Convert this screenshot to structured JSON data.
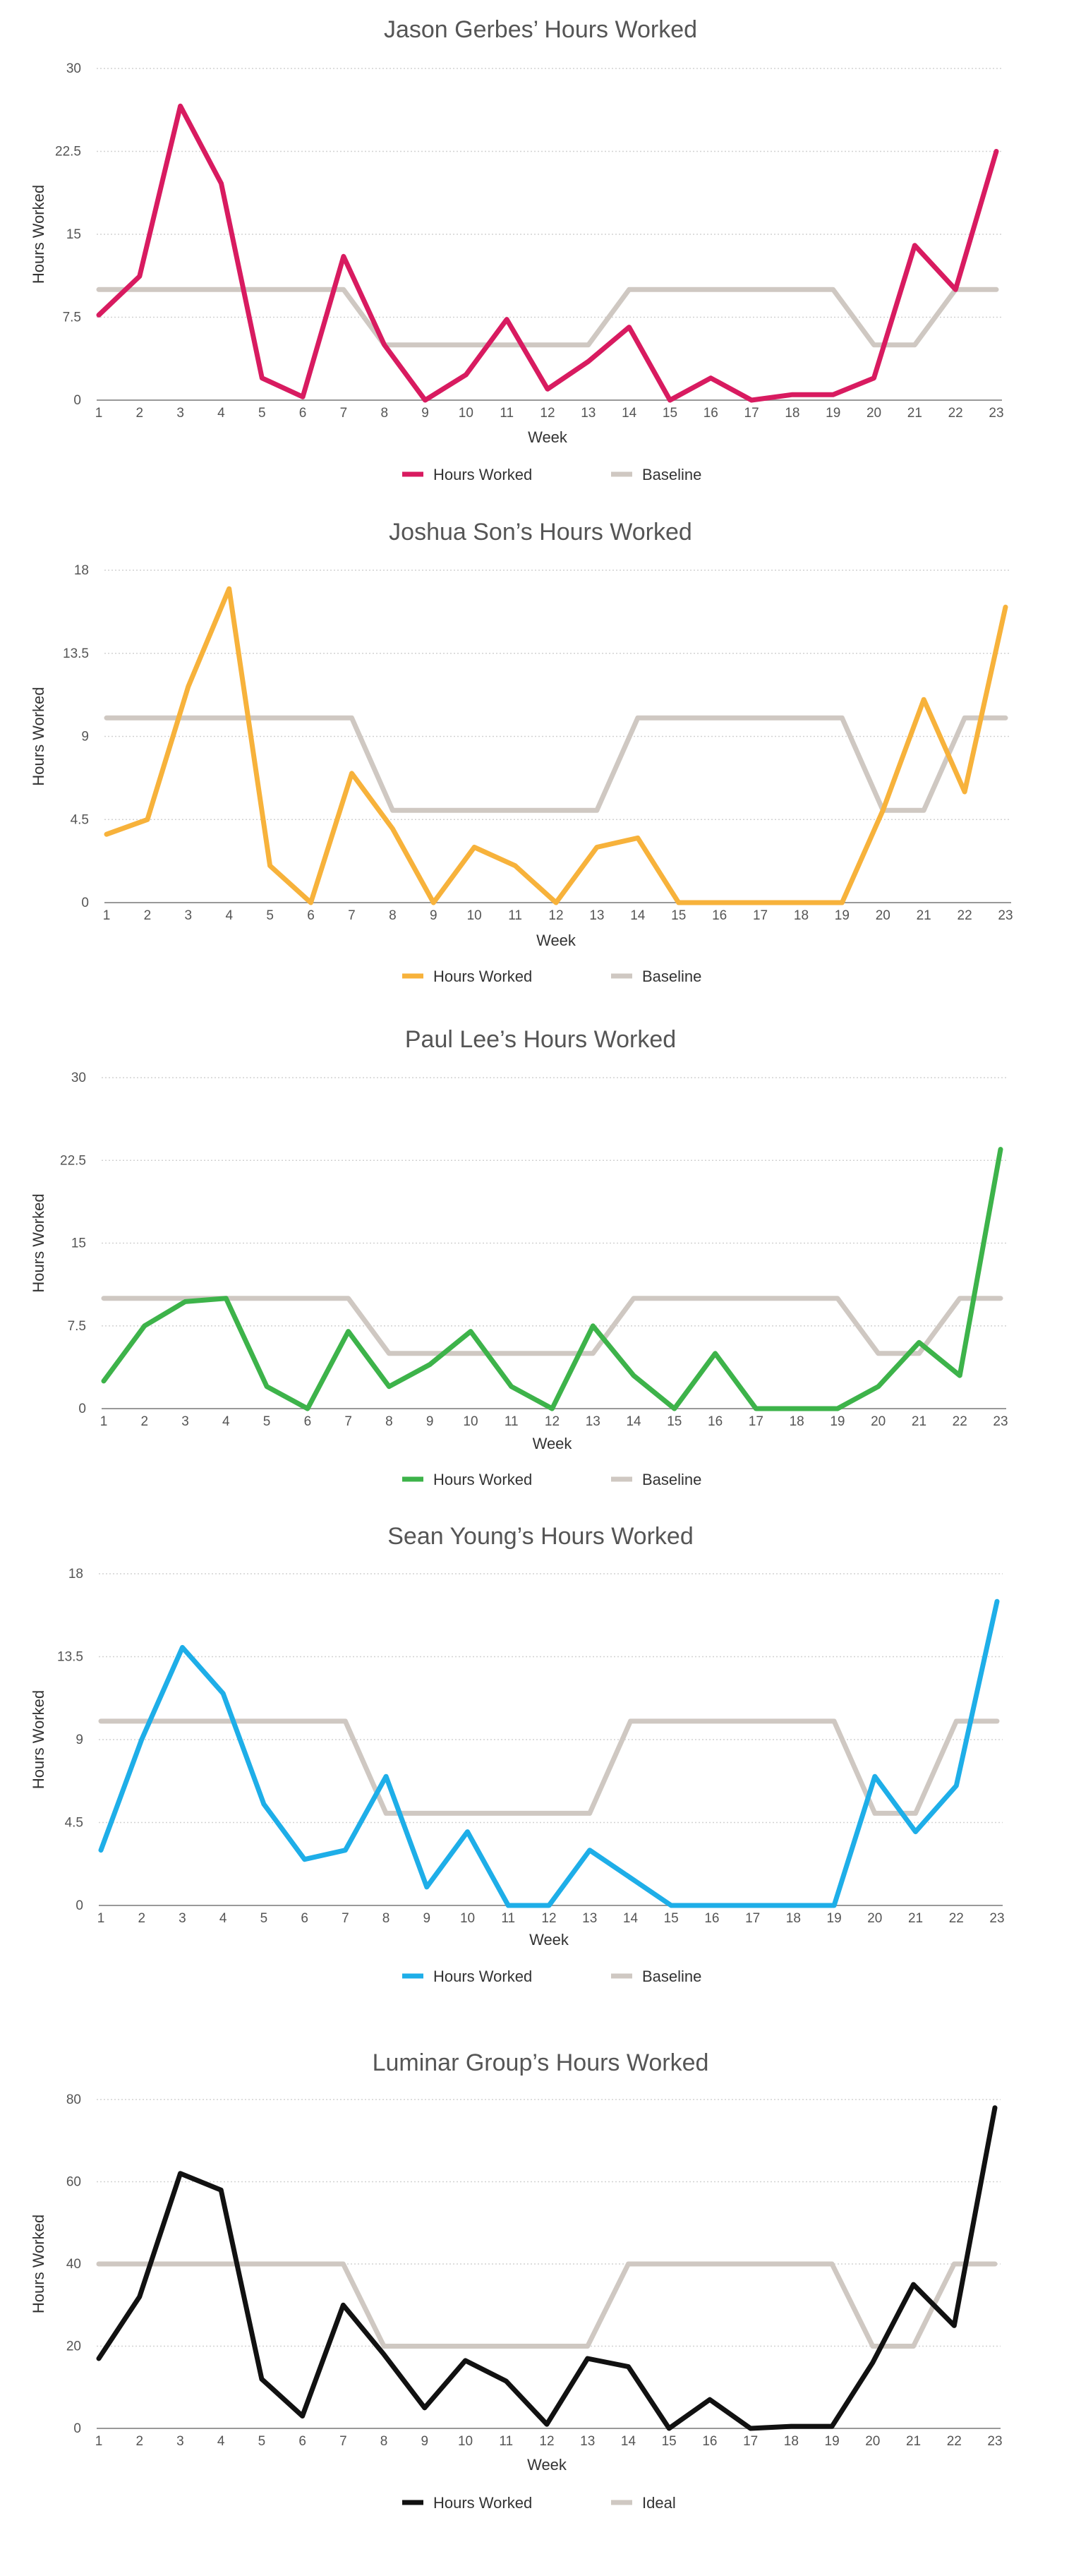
{
  "chart_data": [
    {
      "type": "line",
      "title": "Jason Gerbes’ Hours Worked",
      "xlabel": "Week",
      "ylabel": "Hours Worked",
      "x": [
        1,
        2,
        3,
        4,
        5,
        6,
        7,
        8,
        9,
        10,
        11,
        12,
        13,
        14,
        15,
        16,
        17,
        18,
        19,
        20,
        21,
        22,
        23
      ],
      "yticks": [
        "0",
        "7.5",
        "15",
        "22.5",
        "30"
      ],
      "ylim": [
        0,
        30
      ],
      "grid": true,
      "legend": "bottom",
      "series": [
        {
          "name": "Hours Worked",
          "color": "#d81b60",
          "values": [
            7.7,
            11.2,
            26.6,
            19.6,
            2,
            0.3,
            13,
            5,
            0,
            2.3,
            7.3,
            1,
            3.5,
            6.6,
            0,
            2,
            0,
            0.5,
            0.5,
            2,
            14,
            10,
            22.5
          ]
        },
        {
          "name": "Baseline",
          "color": "#cfc8c2",
          "values": [
            10,
            10,
            10,
            10,
            10,
            10,
            10,
            5,
            5,
            5,
            5,
            5,
            5,
            10,
            10,
            10,
            10,
            10,
            10,
            5,
            5,
            10,
            10
          ]
        }
      ]
    },
    {
      "type": "line",
      "title": "Joshua Son’s Hours Worked",
      "xlabel": "Week",
      "ylabel": "Hours Worked",
      "x": [
        1,
        2,
        3,
        4,
        5,
        6,
        7,
        8,
        9,
        10,
        11,
        12,
        13,
        14,
        15,
        16,
        17,
        18,
        19,
        20,
        21,
        22,
        23
      ],
      "yticks": [
        "0",
        "4.5",
        "9",
        "13.5",
        "18"
      ],
      "ylim": [
        0,
        18
      ],
      "grid": true,
      "legend": "bottom",
      "series": [
        {
          "name": "Hours Worked",
          "color": "#f7b23b",
          "values": [
            3.7,
            4.5,
            11.7,
            17,
            2,
            0,
            7,
            4,
            0,
            3,
            2,
            0,
            3,
            3.5,
            0,
            0,
            0,
            0,
            0,
            5,
            11,
            6,
            16
          ]
        },
        {
          "name": "Baseline",
          "color": "#cfc8c2",
          "values": [
            10,
            10,
            10,
            10,
            10,
            10,
            10,
            5,
            5,
            5,
            5,
            5,
            5,
            10,
            10,
            10,
            10,
            10,
            10,
            5,
            5,
            10,
            10
          ]
        }
      ]
    },
    {
      "type": "line",
      "title": "Paul Lee’s Hours Worked",
      "xlabel": "Week",
      "ylabel": "Hours Worked",
      "x": [
        1,
        2,
        3,
        4,
        5,
        6,
        7,
        8,
        9,
        10,
        11,
        12,
        13,
        14,
        15,
        16,
        17,
        18,
        19,
        20,
        21,
        22,
        23
      ],
      "yticks": [
        "0",
        "7.5",
        "15",
        "22.5",
        "30"
      ],
      "ylim": [
        0,
        30
      ],
      "grid": true,
      "legend": "bottom",
      "series": [
        {
          "name": "Hours Worked",
          "color": "#3db34a",
          "values": [
            2.5,
            7.5,
            9.7,
            10,
            2,
            0,
            7,
            2,
            4,
            7,
            2,
            0,
            7.5,
            3,
            0,
            5,
            0,
            0,
            0,
            2,
            6,
            3,
            23.5
          ]
        },
        {
          "name": "Baseline",
          "color": "#cfc8c2",
          "values": [
            10,
            10,
            10,
            10,
            10,
            10,
            10,
            5,
            5,
            5,
            5,
            5,
            5,
            10,
            10,
            10,
            10,
            10,
            10,
            5,
            5,
            10,
            10
          ]
        }
      ]
    },
    {
      "type": "line",
      "title": "Sean Young’s Hours Worked",
      "xlabel": "Week",
      "ylabel": "Hours Worked",
      "x": [
        1,
        2,
        3,
        4,
        5,
        6,
        7,
        8,
        9,
        10,
        11,
        12,
        13,
        14,
        15,
        16,
        17,
        18,
        19,
        20,
        21,
        22,
        23
      ],
      "yticks": [
        "0",
        "4.5",
        "9",
        "13.5",
        "18"
      ],
      "ylim": [
        0,
        18
      ],
      "grid": true,
      "legend": "bottom",
      "series": [
        {
          "name": "Hours Worked",
          "color": "#1eaee8",
          "values": [
            3,
            9,
            14,
            11.5,
            5.5,
            2.5,
            3,
            7,
            1,
            4,
            0,
            0,
            3,
            1.5,
            0,
            0,
            0,
            0,
            0,
            7,
            4,
            6.5,
            16.5
          ]
        },
        {
          "name": "Baseline",
          "color": "#cfc8c2",
          "values": [
            10,
            10,
            10,
            10,
            10,
            10,
            10,
            5,
            5,
            5,
            5,
            5,
            5,
            10,
            10,
            10,
            10,
            10,
            10,
            5,
            5,
            10,
            10
          ]
        }
      ]
    },
    {
      "type": "line",
      "title": "Luminar Group’s Hours Worked",
      "xlabel": "Week",
      "ylabel": "Hours Worked",
      "x": [
        1,
        2,
        3,
        4,
        5,
        6,
        7,
        8,
        9,
        10,
        11,
        12,
        13,
        14,
        15,
        16,
        17,
        18,
        19,
        20,
        21,
        22,
        23
      ],
      "yticks": [
        "0",
        "20",
        "40",
        "60",
        "80"
      ],
      "ylim": [
        0,
        80
      ],
      "grid": true,
      "legend": "bottom",
      "series": [
        {
          "name": "Hours Worked",
          "color": "#111111",
          "values": [
            17,
            32,
            62,
            58,
            12,
            3,
            30,
            18,
            5,
            16.5,
            11.5,
            1,
            17,
            15,
            0,
            7,
            0,
            0.5,
            0.5,
            16,
            35,
            25,
            78
          ]
        },
        {
          "name": "Ideal",
          "color": "#cfc8c2",
          "values": [
            40,
            40,
            40,
            40,
            40,
            40,
            40,
            20,
            20,
            20,
            20,
            20,
            20,
            40,
            40,
            40,
            40,
            40,
            40,
            20,
            20,
            40,
            40
          ]
        }
      ]
    }
  ]
}
